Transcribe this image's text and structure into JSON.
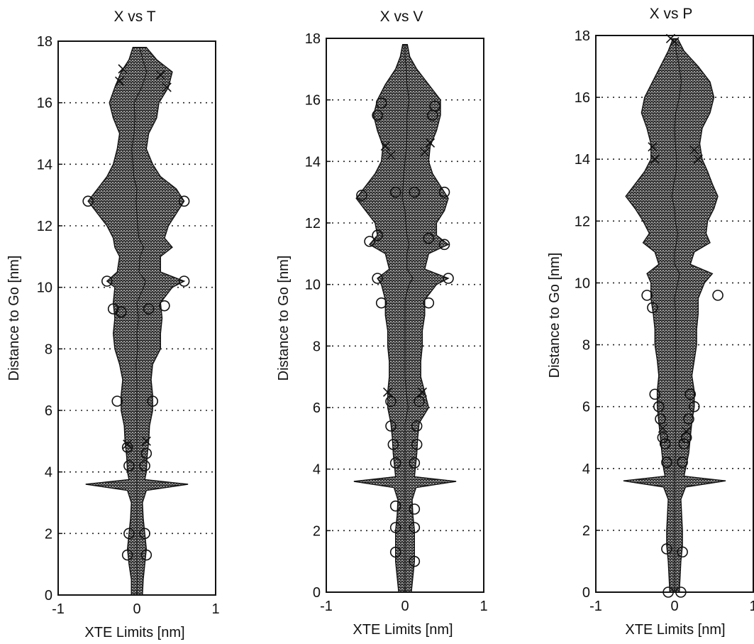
{
  "chart_data": [
    {
      "type": "area",
      "title": "X vs T",
      "xlabel": "XTE Limits [nm]",
      "ylabel": "Distance to Go [nm]",
      "xlim": [
        -1,
        1
      ],
      "ylim": [
        0,
        18
      ],
      "grid": "horizontal-dotted",
      "xticks": [
        "-1",
        "0",
        "1"
      ],
      "yticks": [
        "0",
        "2",
        "4",
        "6",
        "8",
        "10",
        "12",
        "14",
        "16",
        "18"
      ],
      "envelope": {
        "y": [
          0,
          0.5,
          1,
          1.5,
          2,
          2.5,
          3,
          3.4,
          3.6,
          3.75,
          4,
          4.5,
          5,
          5.5,
          6,
          6.5,
          7,
          7.5,
          8,
          8.5,
          9,
          9.5,
          10,
          10.2,
          10.5,
          11,
          11.3,
          11.6,
          12,
          12.4,
          12.8,
          13.2,
          13.6,
          14,
          14.5,
          15,
          15.5,
          16,
          16.5,
          17,
          17.4,
          17.8
        ],
        "left": [
          -0.07,
          -0.07,
          -0.1,
          -0.12,
          -0.1,
          -0.08,
          -0.07,
          -0.12,
          -0.65,
          -0.1,
          -0.12,
          -0.13,
          -0.15,
          -0.16,
          -0.2,
          -0.2,
          -0.18,
          -0.22,
          -0.28,
          -0.3,
          -0.28,
          -0.3,
          -0.28,
          -0.38,
          -0.25,
          -0.22,
          -0.28,
          -0.3,
          -0.38,
          -0.5,
          -0.62,
          -0.5,
          -0.38,
          -0.3,
          -0.25,
          -0.22,
          -0.3,
          -0.35,
          -0.28,
          -0.2,
          -0.1,
          -0.05
        ],
        "right": [
          0.07,
          0.08,
          0.1,
          0.12,
          0.1,
          0.08,
          0.07,
          0.12,
          0.65,
          0.1,
          0.12,
          0.13,
          0.15,
          0.16,
          0.2,
          0.2,
          0.18,
          0.2,
          0.3,
          0.3,
          0.32,
          0.3,
          0.45,
          0.6,
          0.3,
          0.3,
          0.45,
          0.35,
          0.4,
          0.5,
          0.6,
          0.5,
          0.3,
          0.2,
          0.12,
          0.15,
          0.25,
          0.28,
          0.4,
          0.45,
          0.25,
          0.12
        ]
      },
      "circle_markers": [
        [
          -0.62,
          12.8
        ],
        [
          0.6,
          12.8
        ],
        [
          -0.38,
          10.2
        ],
        [
          0.6,
          10.2
        ],
        [
          -0.3,
          9.3
        ],
        [
          -0.2,
          9.2
        ],
        [
          0.15,
          9.3
        ],
        [
          0.35,
          9.4
        ],
        [
          -0.25,
          6.3
        ],
        [
          0.2,
          6.3
        ],
        [
          -0.12,
          4.8
        ],
        [
          0.12,
          4.6
        ],
        [
          -0.1,
          4.2
        ],
        [
          0.1,
          4.2
        ],
        [
          -0.1,
          2.0
        ],
        [
          0.1,
          2.0
        ],
        [
          -0.12,
          1.3
        ],
        [
          0.12,
          1.3
        ]
      ],
      "x_markers": [
        [
          -0.22,
          16.7
        ],
        [
          -0.18,
          17.1
        ],
        [
          0.3,
          16.9
        ],
        [
          0.38,
          16.5
        ],
        [
          -0.12,
          4.9
        ],
        [
          0.12,
          5.0
        ]
      ]
    },
    {
      "type": "area",
      "title": "X vs V",
      "xlabel": "XTE Limits [nm]",
      "ylabel": "Distance to Go [nm]",
      "xlim": [
        -1,
        1
      ],
      "ylim": [
        0,
        18
      ],
      "grid": "horizontal-dotted",
      "xticks": [
        "-1",
        "0",
        "1"
      ],
      "yticks": [
        "0",
        "2",
        "4",
        "6",
        "8",
        "10",
        "12",
        "14",
        "16",
        "18"
      ],
      "envelope": {
        "y": [
          0,
          0.5,
          1,
          1.5,
          2,
          2.5,
          3,
          3.4,
          3.6,
          3.75,
          4,
          4.5,
          5,
          5.5,
          6,
          6.5,
          7,
          7.5,
          8,
          8.5,
          9,
          9.5,
          10,
          10.2,
          10.5,
          11,
          11.3,
          11.6,
          12,
          12.4,
          12.8,
          13.2,
          13.6,
          14,
          14.5,
          15,
          15.5,
          16,
          16.5,
          17,
          17.4,
          17.8
        ],
        "left": [
          -0.08,
          -0.1,
          -0.12,
          -0.12,
          -0.12,
          -0.1,
          -0.09,
          -0.14,
          -0.65,
          -0.12,
          -0.13,
          -0.15,
          -0.16,
          -0.18,
          -0.22,
          -0.22,
          -0.2,
          -0.2,
          -0.22,
          -0.22,
          -0.25,
          -0.25,
          -0.3,
          -0.35,
          -0.2,
          -0.25,
          -0.45,
          -0.35,
          -0.38,
          -0.5,
          -0.62,
          -0.5,
          -0.38,
          -0.3,
          -0.28,
          -0.35,
          -0.4,
          -0.35,
          -0.25,
          -0.12,
          -0.06,
          -0.03
        ],
        "right": [
          0.08,
          0.1,
          0.12,
          0.12,
          0.12,
          0.1,
          0.09,
          0.14,
          0.65,
          0.12,
          0.13,
          0.15,
          0.16,
          0.18,
          0.3,
          0.25,
          0.2,
          0.2,
          0.22,
          0.22,
          0.25,
          0.25,
          0.4,
          0.55,
          0.25,
          0.3,
          0.55,
          0.4,
          0.4,
          0.5,
          0.55,
          0.45,
          0.35,
          0.3,
          0.32,
          0.4,
          0.45,
          0.45,
          0.3,
          0.15,
          0.06,
          0.03
        ]
      },
      "circle_markers": [
        [
          -0.55,
          12.9
        ],
        [
          0.5,
          13.0
        ],
        [
          -0.45,
          11.4
        ],
        [
          -0.35,
          11.6
        ],
        [
          0.3,
          11.5
        ],
        [
          0.5,
          11.3
        ],
        [
          -0.35,
          10.2
        ],
        [
          0.55,
          10.2
        ],
        [
          -0.3,
          9.4
        ],
        [
          0.3,
          9.4
        ],
        [
          -0.35,
          15.5
        ],
        [
          -0.3,
          15.9
        ],
        [
          0.35,
          15.5
        ],
        [
          0.38,
          15.8
        ],
        [
          -0.12,
          13.0
        ],
        [
          0.12,
          13.0
        ],
        [
          -0.18,
          6.2
        ],
        [
          0.18,
          6.2
        ],
        [
          -0.18,
          5.4
        ],
        [
          0.15,
          5.4
        ],
        [
          -0.15,
          4.8
        ],
        [
          0.15,
          4.8
        ],
        [
          -0.12,
          4.2
        ],
        [
          0.12,
          4.2
        ],
        [
          -0.12,
          2.8
        ],
        [
          0.12,
          2.7
        ],
        [
          -0.12,
          2.1
        ],
        [
          0.12,
          2.1
        ],
        [
          -0.12,
          1.3
        ],
        [
          0.12,
          1.0
        ]
      ],
      "x_markers": [
        [
          -0.25,
          14.5
        ],
        [
          -0.18,
          14.2
        ],
        [
          0.25,
          14.3
        ],
        [
          0.32,
          14.6
        ],
        [
          -0.22,
          6.5
        ],
        [
          0.22,
          6.5
        ]
      ]
    },
    {
      "type": "area",
      "title": "X vs P",
      "xlabel": "XTE Limits [nm]",
      "ylabel": "Distance to Go [nm]",
      "xlim": [
        -1,
        1
      ],
      "ylim": [
        0,
        18
      ],
      "grid": "horizontal-dotted",
      "xticks": [
        "-1",
        "0",
        "1"
      ],
      "yticks": [
        "0",
        "2",
        "4",
        "6",
        "8",
        "10",
        "12",
        "14",
        "16",
        "18"
      ],
      "envelope": {
        "y": [
          0,
          0.5,
          1,
          1.5,
          2,
          2.5,
          3,
          3.4,
          3.6,
          3.75,
          4,
          4.5,
          5,
          5.5,
          6,
          6.5,
          7,
          7.5,
          8,
          8.5,
          9,
          9.5,
          10,
          10.3,
          10.6,
          11,
          11.3,
          11.6,
          12,
          12.4,
          12.8,
          13.2,
          13.6,
          14,
          14.5,
          15,
          15.5,
          16,
          16.5,
          17,
          17.5,
          17.9
        ],
        "left": [
          -0.06,
          -0.07,
          -0.08,
          -0.1,
          -0.1,
          -0.09,
          -0.08,
          -0.14,
          -0.65,
          -0.12,
          -0.14,
          -0.16,
          -0.18,
          -0.2,
          -0.22,
          -0.22,
          -0.2,
          -0.22,
          -0.25,
          -0.25,
          -0.27,
          -0.3,
          -0.3,
          -0.35,
          -0.2,
          -0.25,
          -0.4,
          -0.32,
          -0.4,
          -0.5,
          -0.62,
          -0.5,
          -0.38,
          -0.3,
          -0.3,
          -0.35,
          -0.42,
          -0.38,
          -0.28,
          -0.18,
          -0.08,
          -0.02
        ],
        "right": [
          0.06,
          0.07,
          0.08,
          0.1,
          0.1,
          0.09,
          0.08,
          0.14,
          0.65,
          0.12,
          0.14,
          0.18,
          0.2,
          0.22,
          0.25,
          0.25,
          0.22,
          0.25,
          0.28,
          0.28,
          0.3,
          0.3,
          0.38,
          0.48,
          0.2,
          0.25,
          0.45,
          0.4,
          0.42,
          0.5,
          0.55,
          0.48,
          0.42,
          0.35,
          0.32,
          0.35,
          0.45,
          0.5,
          0.45,
          0.3,
          0.12,
          0.04
        ]
      },
      "circle_markers": [
        [
          -0.35,
          9.6
        ],
        [
          0.55,
          9.6
        ],
        [
          -0.28,
          9.2
        ],
        [
          -0.25,
          6.4
        ],
        [
          -0.2,
          6.0
        ],
        [
          0.2,
          6.4
        ],
        [
          0.25,
          6.0
        ],
        [
          -0.18,
          5.6
        ],
        [
          0.18,
          5.6
        ],
        [
          -0.15,
          5.0
        ],
        [
          0.15,
          5.0
        ],
        [
          -0.12,
          4.8
        ],
        [
          0.12,
          4.8
        ],
        [
          -0.1,
          4.2
        ],
        [
          0.1,
          4.2
        ],
        [
          -0.1,
          1.4
        ],
        [
          0.1,
          1.3
        ],
        [
          -0.08,
          0.0
        ],
        [
          0.08,
          0.0
        ]
      ],
      "x_markers": [
        [
          -0.28,
          14.4
        ],
        [
          -0.25,
          14.0
        ],
        [
          0.25,
          14.3
        ],
        [
          0.3,
          14.0
        ],
        [
          -0.05,
          17.9
        ],
        [
          0.0,
          17.8
        ],
        [
          -0.15,
          5.3
        ],
        [
          0.15,
          5.2
        ]
      ]
    }
  ]
}
